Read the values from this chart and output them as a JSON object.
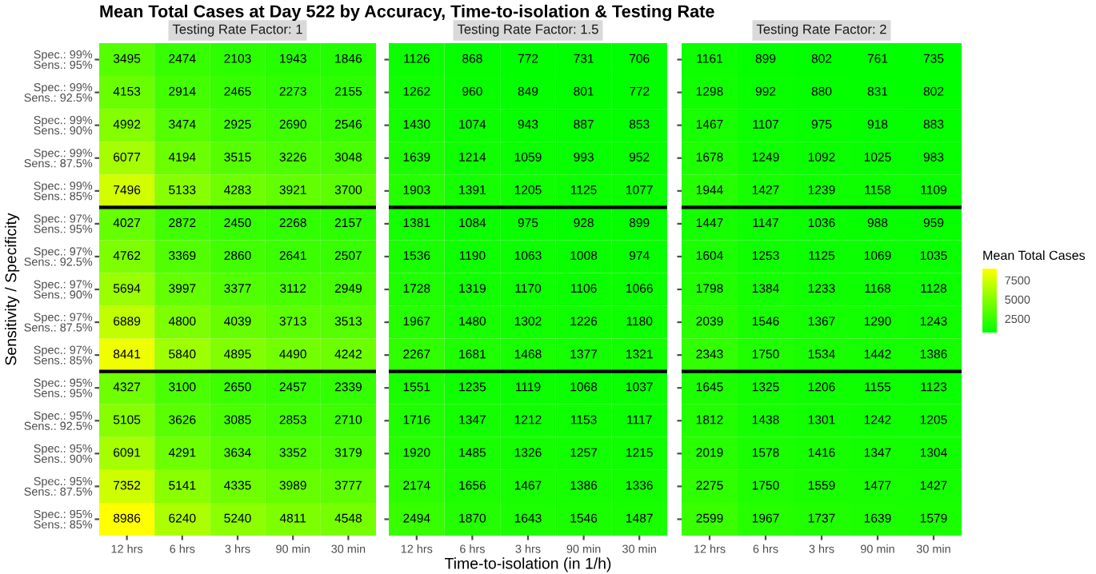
{
  "chart_data": [
    {
      "type": "heatmap",
      "title": "Mean Total Cases at Day 522 by Accuracy, Time-to-isolation & Testing Rate",
      "subtitle": "Testing Rate Factor: 1",
      "ylabel": "Sensitivity / Specificity",
      "categories": [
        "12 hrs",
        "6 hrs",
        "3 hrs",
        "90 min",
        "30 min"
      ],
      "y_categories": [
        "Spec.: 99%\nSens.: 95%",
        "Spec.: 99%\nSens.: 92.5%",
        "Spec.: 99%\nSens.: 90%",
        "Spec.: 99%\nSens.: 87.5%",
        "Spec.: 99%\nSens.: 85%",
        "Spec.: 97%\nSens.: 95%",
        "Spec.: 97%\nSens.: 92.5%",
        "Spec.: 97%\nSens.: 90%",
        "Spec.: 97%\nSens.: 87.5%",
        "Spec.: 97%\nSens.: 85%",
        "Spec.: 95%\nSens.: 95%",
        "Spec.: 95%\nSens.: 92.5%",
        "Spec.: 95%\nSens.: 90%",
        "Spec.: 95%\nSens.: 87.5%",
        "Spec.: 95%\nSens.: 85%"
      ],
      "cells": [
        [
          3495,
          2474,
          2103,
          1943,
          1846
        ],
        [
          4153,
          2914,
          2465,
          2273,
          2155
        ],
        [
          4992,
          3474,
          2925,
          2690,
          2546
        ],
        [
          6077,
          4194,
          3515,
          3226,
          3048
        ],
        [
          7496,
          5133,
          4283,
          3921,
          3700
        ],
        [
          4027,
          2872,
          2450,
          2268,
          2157
        ],
        [
          4762,
          3369,
          2860,
          2641,
          2507
        ],
        [
          5694,
          3997,
          3377,
          3112,
          2949
        ],
        [
          6889,
          4800,
          4039,
          3713,
          3513
        ],
        [
          8441,
          5840,
          4895,
          4490,
          4242
        ],
        [
          4327,
          3100,
          2650,
          2457,
          2339
        ],
        [
          5105,
          3626,
          3085,
          2853,
          2710
        ],
        [
          6091,
          4291,
          3634,
          3352,
          3179
        ],
        [
          7352,
          5141,
          4335,
          3989,
          3777
        ],
        [
          8986,
          6240,
          5240,
          4811,
          4548
        ]
      ],
      "data_labels": true
    },
    {
      "type": "heatmap",
      "subtitle": "Testing Rate Factor: 1.5",
      "xlabel": "Time-to-isolation (in 1/h)",
      "tick_labels": "x",
      "categories": [
        "12 hrs",
        "6 hrs",
        "3 hrs",
        "90 min",
        "30 min"
      ],
      "y_categories": [
        null,
        null,
        null,
        null,
        null,
        null,
        null,
        null,
        null,
        null,
        null,
        null,
        null,
        null,
        null
      ],
      "cells": [
        [
          1126,
          868,
          772,
          731,
          706
        ],
        [
          1262,
          960,
          849,
          801,
          772
        ],
        [
          1430,
          1074,
          943,
          887,
          853
        ],
        [
          1639,
          1214,
          1059,
          993,
          952
        ],
        [
          1903,
          1391,
          1205,
          1125,
          1077
        ],
        [
          1381,
          1084,
          975,
          928,
          899
        ],
        [
          1536,
          1190,
          1063,
          1008,
          974
        ],
        [
          1728,
          1319,
          1170,
          1106,
          1066
        ],
        [
          1967,
          1480,
          1302,
          1226,
          1180
        ],
        [
          2267,
          1681,
          1468,
          1377,
          1321
        ],
        [
          1551,
          1235,
          1119,
          1068,
          1037
        ],
        [
          1716,
          1347,
          1212,
          1153,
          1117
        ],
        [
          1920,
          1485,
          1326,
          1257,
          1215
        ],
        [
          2174,
          1656,
          1467,
          1386,
          1336
        ],
        [
          2494,
          1870,
          1643,
          1546,
          1487
        ]
      ],
      "data_labels": true
    },
    {
      "type": "heatmap",
      "subtitle": "Testing Rate Factor: 2",
      "clabel": "Mean Total Cases",
      "tick_labels": "x",
      "categories": [
        "12 hrs",
        "6 hrs",
        "3 hrs",
        "90 min",
        "30 min"
      ],
      "y_categories": [
        null,
        null,
        null,
        null,
        null,
        null,
        null,
        null,
        null,
        null,
        null,
        null,
        null,
        null,
        null
      ],
      "cells": [
        [
          1161,
          899,
          802,
          761,
          735
        ],
        [
          1298,
          992,
          880,
          831,
          802
        ],
        [
          1467,
          1107,
          975,
          918,
          883
        ],
        [
          1678,
          1249,
          1092,
          1025,
          983
        ],
        [
          1944,
          1427,
          1239,
          1158,
          1109
        ],
        [
          1447,
          1147,
          1036,
          988,
          959
        ],
        [
          1604,
          1253,
          1125,
          1069,
          1035
        ],
        [
          1798,
          1384,
          1233,
          1168,
          1128
        ],
        [
          2039,
          1546,
          1367,
          1290,
          1243
        ],
        [
          2343,
          1750,
          1534,
          1442,
          1386
        ],
        [
          1645,
          1325,
          1206,
          1155,
          1123
        ],
        [
          1812,
          1438,
          1301,
          1242,
          1205
        ],
        [
          2019,
          1578,
          1416,
          1347,
          1304
        ],
        [
          2275,
          1750,
          1559,
          1477,
          1427
        ],
        [
          2599,
          1967,
          1737,
          1639,
          1579
        ]
      ],
      "clim": [
        706,
        8986
      ],
      "cticks": [
        2500,
        5000,
        7500
      ],
      "data_labels": true
    }
  ]
}
